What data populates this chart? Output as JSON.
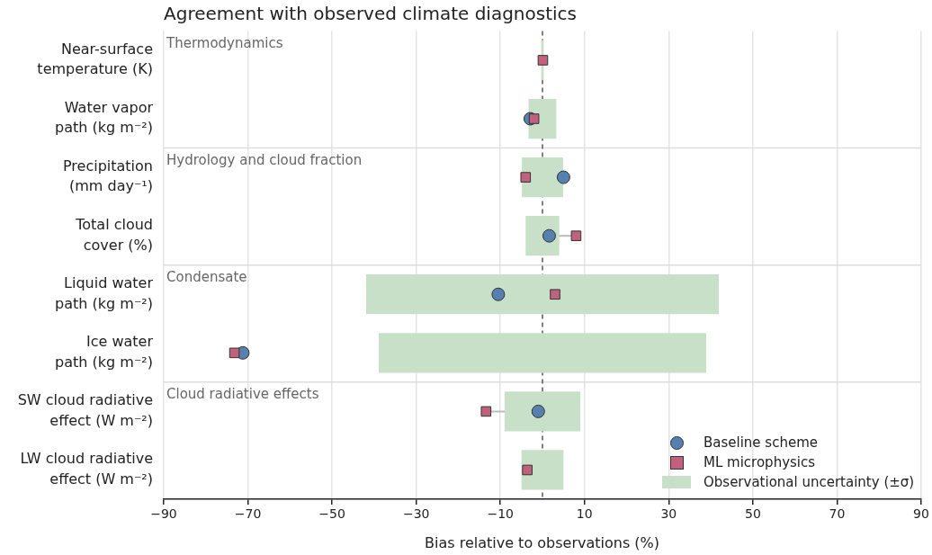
{
  "chart_data": {
    "type": "scatter",
    "orientation": "horizontal",
    "title": "Agreement with observed climate diagnostics",
    "xlabel": "Bias relative to observations (%)",
    "categories": [
      "Near-surface\ntemperature (K)",
      "Water vapor\npath (kg m⁻²)",
      "Precipitation\n(mm day⁻¹)",
      "Total cloud\ncover (%)",
      "Liquid water\npath (kg m⁻²)",
      "Ice water\npath (kg m⁻²)",
      "SW cloud radiative\neffect (W m⁻²)",
      "LW cloud radiative\neffect (W m⁻²)"
    ],
    "series": [
      {
        "name": "Observational uncertainty (±σ)",
        "type": "bar",
        "color": "#c8e0c8",
        "base": [
          -0.3,
          -3.3,
          -4.9,
          -4.0,
          -41.9,
          -38.9,
          -9.0,
          -5.0
        ],
        "values": [
          0.6,
          6.6,
          9.8,
          8.0,
          83.8,
          77.8,
          18.0,
          10.0
        ]
      },
      {
        "name": "Baseline scheme",
        "marker": "circle",
        "color": "#5580b0",
        "values": [
          null,
          -2.9,
          5.0,
          1.6,
          -10.5,
          -71.2,
          -1.0,
          null
        ]
      },
      {
        "name": "ML microphysics",
        "marker": "square",
        "color": "#c0627e",
        "values": [
          0.1,
          -2.0,
          -4.0,
          8.0,
          3.0,
          -73.2,
          -13.4,
          -3.6
        ]
      }
    ],
    "xlim": [
      -90,
      90
    ],
    "xticks": [
      {
        "value": -90,
        "label": "−90"
      },
      {
        "value": -70,
        "label": "−70"
      },
      {
        "value": -50,
        "label": "−50"
      },
      {
        "value": -30,
        "label": "−30"
      },
      {
        "value": -10,
        "label": "−10"
      },
      10,
      30,
      50,
      70,
      90
    ],
    "ref_lines": [
      {
        "axis": "x",
        "value": 0,
        "color": "#555555",
        "line_style": "dashed"
      }
    ],
    "annotations": [
      "Thermodynamics",
      "Hydrology and cloud fraction",
      "Condensate",
      "Cloud radiative effects"
    ],
    "grid": "x",
    "legend": "bottom right"
  }
}
